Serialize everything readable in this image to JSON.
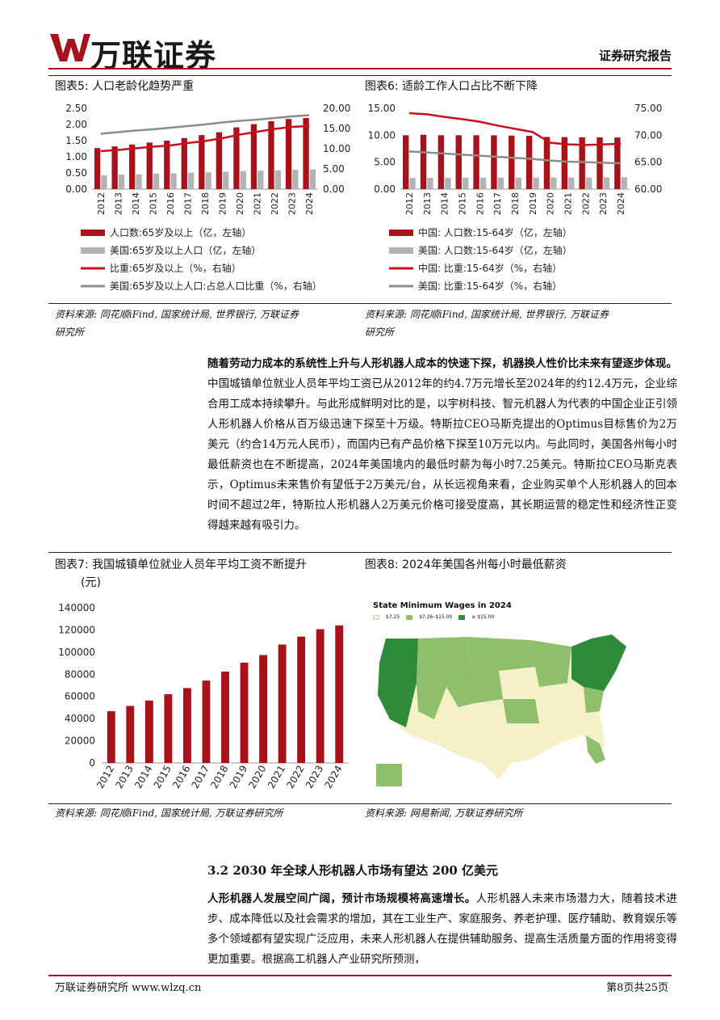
{
  "header": {
    "logo_text": "万联证券",
    "report_type": "证券研究报告"
  },
  "fig5": {
    "title": "图表5: 人口老龄化趋势严重",
    "source_line1": "资料来源: 同花顺iFind, 国家统计局, 世界银行, 万联证券",
    "source_line2": "研究所",
    "legend": [
      "人口数:65岁及以上（亿，左轴）",
      "美国:65岁及以上人口（亿，左轴）",
      "比重:65岁及以上（%，右轴）",
      "美国:65岁及以上人口:占总人口比重（%，右轴）"
    ]
  },
  "fig6": {
    "title": "图表6: 适龄工作人口占比不断下降",
    "source_line1": "资料来源: 同花顺iFind, 国家统计局, 世界银行, 万联证券",
    "source_line2": "研究所",
    "legend": [
      "中国: 人口数:15-64岁（亿，左轴）",
      "美国: 人口数:15-64岁（亿，左轴）",
      "中国: 比重:15-64岁（%，右轴）",
      "美国: 比重:15-64岁（%，右轴）"
    ]
  },
  "para1": {
    "lead": "随着劳动力成本的系统性上升与人形机器人成本的快速下探，机器换人性价比未来有望逐步体现。",
    "body": "中国城镇单位就业人员年平均工资已从2012年的约4.7万元增长至2024年的约12.4万元，企业综合用工成本持续攀升。与此形成鲜明对比的是，以宇树科技、智元机器人为代表的中国企业正引领人形机器人价格从百万级迅速下探至十万级。特斯拉CEO马斯克提出的Optimus目标售价为2万美元（约合14万元人民币），而国内已有产品价格下探至10万元以内。与此同时，美国各州每小时最低薪资也在不断提高，2024年美国境内的最低时薪为每小时7.25美元。特斯拉CEO马斯克表示，Optimus未来售价有望低于2万美元/台，从长远视角来看，企业购买单个人形机器人的回本时间不超过2年，特斯拉人形机器人2万美元价格可接受度高，其长期运营的稳定性和经济性正变得越来越有吸引力。"
  },
  "fig7": {
    "title": "图表7: 我国城镇单位就业人员年平均工资不断提升",
    "unit": "(元)",
    "source": "资料来源: 同花顺iFind, 国家统计局, 万联证券研究所"
  },
  "fig8": {
    "title": "图表8: 2024年美国各州每小时最低薪资",
    "map_title": "State Minimum Wages in 2024",
    "map_legend": [
      "$7.25",
      "$7.26–$15.00",
      "≥ $15.00"
    ],
    "source": "资料来源: 网易新闻, 万联证券研究所"
  },
  "section": {
    "title": "3.2  2030 年全球人形机器人市场有望达 200 亿美元"
  },
  "para2": {
    "lead": "人形机器人发展空间广阔，预计市场规模将高速增长。",
    "body": "人形机器人未来市场潜力大，随着技术进步、成本降低以及社会需求的增加，其在工业生产、家庭服务、养老护理、医疗辅助、教育娱乐等多个领域都有望实现广泛应用，未来人形机器人在提供辅助服务、提高生活质量方面的作用将变得更加重要。根据高工机器人产业研究所预测，"
  },
  "footer": {
    "left": "万联证券研究所  www.wlzq.cn",
    "right": "第8页共25页"
  },
  "colors": {
    "brand_red": "#a8131b",
    "bar_gray": "#b3b3b3",
    "line_red": "#c8101c",
    "line_gray": "#8c8c8c",
    "map_light": "#f5f0c8",
    "map_mid": "#8fbf6b",
    "map_dark": "#2e8b3a"
  },
  "chart_data": [
    {
      "type": "bar",
      "id": "fig5",
      "categories": [
        "2012",
        "2013",
        "2014",
        "2015",
        "2016",
        "2017",
        "2018",
        "2019",
        "2020",
        "2021",
        "2022",
        "2023",
        "2024"
      ],
      "series": [
        {
          "name": "人口数:65岁及以上（亿，左轴）",
          "kind": "bar",
          "axis": "left",
          "values": [
            1.27,
            1.32,
            1.38,
            1.44,
            1.5,
            1.58,
            1.67,
            1.76,
            1.91,
            2.01,
            2.1,
            2.17,
            2.2
          ]
        },
        {
          "name": "美国:65岁及以上人口（亿，左轴）",
          "kind": "bar",
          "axis": "left",
          "values": [
            0.43,
            0.45,
            0.46,
            0.48,
            0.49,
            0.51,
            0.52,
            0.54,
            0.56,
            0.57,
            0.58,
            0.6,
            0.61
          ]
        },
        {
          "name": "比重:65岁及以上（%，右轴）",
          "kind": "line",
          "axis": "right",
          "values": [
            9.4,
            9.7,
            10.1,
            10.5,
            10.8,
            11.4,
            11.9,
            12.6,
            13.5,
            14.2,
            14.9,
            15.4,
            15.6
          ]
        },
        {
          "name": "美国:65岁及以上人口:占总人口比重（%，右轴）",
          "kind": "line",
          "axis": "right",
          "values": [
            13.7,
            14.1,
            14.5,
            14.8,
            15.2,
            15.6,
            16.0,
            16.5,
            16.9,
            17.2,
            17.6,
            18.0,
            18.3
          ]
        }
      ],
      "ylim_left": [
        0,
        2.5
      ],
      "yticks_left": [
        "0.00",
        "0.50",
        "1.00",
        "1.50",
        "2.00",
        "2.50"
      ],
      "ylim_right": [
        0,
        20
      ],
      "yticks_right": [
        "0.00",
        "5.00",
        "10.00",
        "15.00",
        "20.00"
      ]
    },
    {
      "type": "bar",
      "id": "fig6",
      "categories": [
        "2012",
        "2013",
        "2014",
        "2015",
        "2016",
        "2017",
        "2018",
        "2019",
        "2020",
        "2021",
        "2022",
        "2023",
        "2024"
      ],
      "series": [
        {
          "name": "中国: 人口数:15-64岁（亿，左轴）",
          "kind": "bar",
          "axis": "left",
          "values": [
            10.0,
            10.1,
            10.0,
            10.0,
            10.0,
            9.98,
            9.94,
            9.89,
            9.68,
            9.65,
            9.62,
            9.61,
            9.58
          ]
        },
        {
          "name": "美国: 人口数:15-64岁（亿，左轴）",
          "kind": "bar",
          "axis": "left",
          "values": [
            2.08,
            2.1,
            2.11,
            2.12,
            2.13,
            2.14,
            2.14,
            2.15,
            2.16,
            2.16,
            2.17,
            2.18,
            2.19
          ]
        },
        {
          "name": "中国: 比重:15-64岁（%，右轴）",
          "kind": "line",
          "axis": "right",
          "values": [
            74.1,
            73.9,
            73.4,
            73.0,
            72.5,
            71.8,
            71.2,
            70.6,
            68.6,
            68.3,
            68.2,
            68.3,
            68.4
          ]
        },
        {
          "name": "美国: 比重:15-64岁（%，右轴）",
          "kind": "line",
          "axis": "right",
          "values": [
            67.0,
            66.8,
            66.6,
            66.4,
            66.2,
            66.0,
            65.8,
            65.6,
            65.3,
            65.1,
            65.0,
            64.9,
            64.8
          ]
        }
      ],
      "ylim_left": [
        0,
        15
      ],
      "yticks_left": [
        "0.00",
        "5.00",
        "10.00",
        "15.00"
      ],
      "ylim_right": [
        60,
        75
      ],
      "yticks_right": [
        "60.00",
        "65.00",
        "70.00",
        "75.00"
      ]
    },
    {
      "type": "bar",
      "id": "fig7",
      "categories": [
        "2012",
        "2013",
        "2014",
        "2015",
        "2016",
        "2017",
        "2018",
        "2019",
        "2020",
        "2021",
        "2022",
        "2023",
        "2024"
      ],
      "values": [
        46769,
        51483,
        56360,
        62029,
        67569,
        74318,
        82413,
        90501,
        97379,
        106837,
        114029,
        120698,
        124110
      ],
      "ylim": [
        0,
        140000
      ],
      "yticks": [
        "0",
        "20000",
        "40000",
        "60000",
        "80000",
        "100000",
        "120000",
        "140000"
      ]
    }
  ]
}
